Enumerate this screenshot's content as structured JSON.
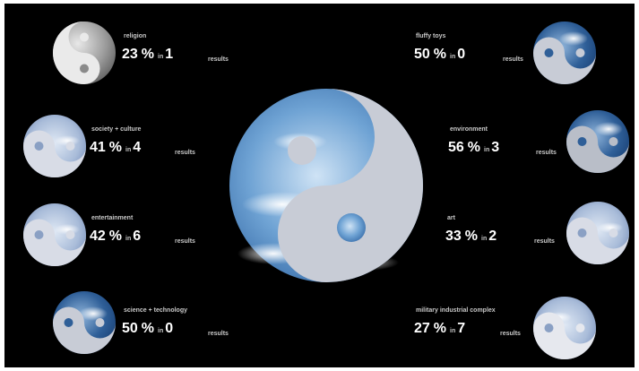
{
  "colors": {
    "background": "#000000",
    "stat_text": "#ffffff",
    "label_text": "#c8c8c8",
    "yin_shape": "#c8ccd6"
  },
  "results_label": "results",
  "percent_symbol": "%",
  "in_word": "in",
  "center_icon": "yin-yang-sky-icon",
  "categories": [
    {
      "label": "religion",
      "percent": "23",
      "count": "1"
    },
    {
      "label": "society + culture",
      "percent": "41",
      "count": "4"
    },
    {
      "label": "entertainment",
      "percent": "42",
      "count": "6"
    },
    {
      "label": "science + technology",
      "percent": "50",
      "count": "0"
    },
    {
      "label": "fluffy toys",
      "percent": "50",
      "count": "0"
    },
    {
      "label": "environment",
      "percent": "56",
      "count": "3"
    },
    {
      "label": "art",
      "percent": "33",
      "count": "2"
    },
    {
      "label": "military industrial complex",
      "percent": "27",
      "count": "7"
    }
  ]
}
